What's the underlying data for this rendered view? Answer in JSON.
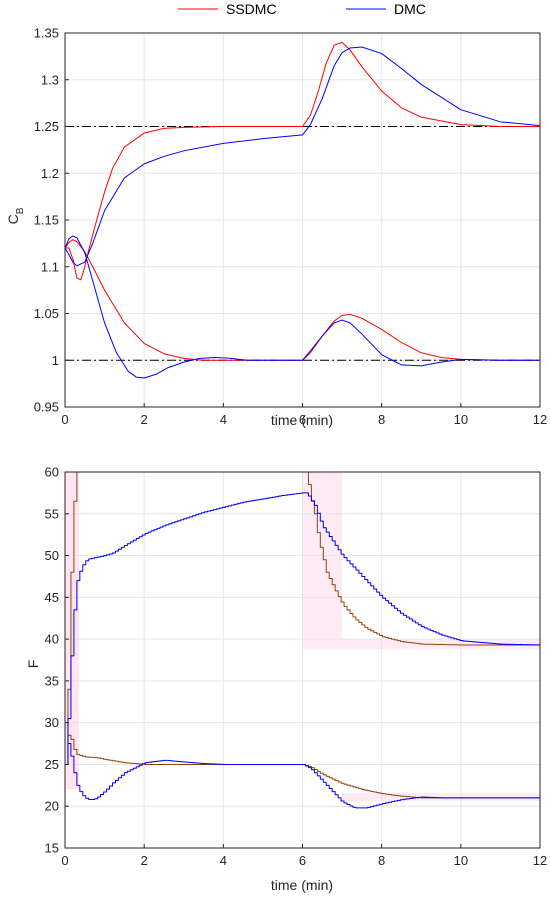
{
  "legend": {
    "entries": [
      {
        "label": "SSDMC",
        "color": "#ff0000"
      },
      {
        "label": "DMC",
        "color": "#0000ff"
      }
    ],
    "placement": "top-center"
  },
  "colors": {
    "reference": "#000000",
    "grid": "#e6e6e6",
    "axes": "#262626",
    "setpoint_band": "#ff99cc",
    "ssdmc_input": "#8b4513"
  },
  "chart_data": [
    {
      "type": "line",
      "title": "",
      "xlabel": "time (min)",
      "ylabel": "C",
      "ylabel_subscript": "B",
      "xlim": [
        0,
        12
      ],
      "ylim": [
        0.95,
        1.35
      ],
      "grid": true,
      "xticks": [
        0,
        2,
        4,
        6,
        8,
        10,
        12
      ],
      "yticks": [
        0.95,
        1,
        1.05,
        1.1,
        1.15,
        1.2,
        1.25,
        1.3,
        1.35
      ],
      "ytick_labels": [
        "0.95",
        "1",
        "1.05",
        "1.1",
        "1.15",
        "1.2",
        "1.25",
        "1.3",
        "1.35"
      ],
      "reference_lines": [
        1.25,
        1.0
      ],
      "series": [
        {
          "name": "SSDMC",
          "color": "#ff0000",
          "x": [
            0,
            0.1,
            0.2,
            0.3,
            0.4,
            0.5,
            0.6,
            0.8,
            1,
            1.2,
            1.5,
            2,
            2.5,
            3,
            4,
            5,
            6,
            6.2,
            6.4,
            6.6,
            6.8,
            7,
            7.2,
            7.5,
            8,
            8.5,
            9,
            10,
            11,
            12
          ],
          "y": [
            1.12,
            1.12,
            1.108,
            1.088,
            1.086,
            1.1,
            1.118,
            1.15,
            1.18,
            1.205,
            1.228,
            1.243,
            1.248,
            1.249,
            1.25,
            1.25,
            1.25,
            1.262,
            1.288,
            1.318,
            1.337,
            1.34,
            1.332,
            1.314,
            1.288,
            1.27,
            1.26,
            1.252,
            1.25,
            1.25
          ]
        },
        {
          "name": "",
          "color": "#ff0000",
          "x": [
            0,
            0.1,
            0.2,
            0.3,
            0.5,
            0.7,
            1,
            1.5,
            2,
            2.5,
            3,
            3.5,
            4,
            5,
            6,
            6.2,
            6.5,
            6.8,
            7,
            7.2,
            7.5,
            8,
            8.5,
            9,
            9.5,
            10,
            11,
            12
          ],
          "y": [
            1.12,
            1.126,
            1.129,
            1.127,
            1.116,
            1.1,
            1.075,
            1.04,
            1.018,
            1.007,
            1.002,
            1.0,
            1.0,
            1.0,
            1.0,
            1.008,
            1.026,
            1.042,
            1.048,
            1.049,
            1.045,
            1.033,
            1.019,
            1.008,
            1.003,
            1.001,
            1.0,
            1.0
          ]
        },
        {
          "name": "DMC",
          "color": "#0000ff",
          "x": [
            0,
            0.1,
            0.2,
            0.3,
            0.5,
            0.7,
            1,
            1.5,
            2,
            2.5,
            3,
            4,
            5,
            6,
            6.2,
            6.5,
            6.8,
            7,
            7.2,
            7.5,
            8,
            8.5,
            9,
            10,
            11,
            12
          ],
          "y": [
            1.12,
            1.113,
            1.105,
            1.101,
            1.105,
            1.125,
            1.16,
            1.195,
            1.21,
            1.218,
            1.224,
            1.232,
            1.237,
            1.241,
            1.252,
            1.28,
            1.315,
            1.329,
            1.334,
            1.335,
            1.328,
            1.312,
            1.295,
            1.268,
            1.255,
            1.251
          ]
        },
        {
          "name": "",
          "color": "#0000ff",
          "x": [
            0,
            0.1,
            0.2,
            0.3,
            0.5,
            0.7,
            1,
            1.3,
            1.6,
            1.8,
            2,
            2.3,
            2.6,
            3,
            3.4,
            3.8,
            4.2,
            4.6,
            5,
            6,
            6.2,
            6.5,
            6.8,
            7,
            7.2,
            7.5,
            8,
            8.5,
            9,
            9.5,
            10,
            11,
            12
          ],
          "y": [
            1.12,
            1.13,
            1.133,
            1.131,
            1.115,
            1.085,
            1.04,
            1.008,
            0.988,
            0.982,
            0.981,
            0.985,
            0.992,
            0.998,
            1.002,
            1.003,
            1.002,
            1.0,
            1.0,
            1.0,
            1.01,
            1.026,
            1.04,
            1.043,
            1.04,
            1.028,
            1.006,
            0.995,
            0.994,
            0.998,
            1.001,
            1.0,
            1.0
          ]
        }
      ]
    },
    {
      "type": "line",
      "title": "",
      "xlabel": "time (min)",
      "ylabel": "F",
      "xlim": [
        0,
        12
      ],
      "ylim": [
        15,
        60
      ],
      "grid": true,
      "xticks": [
        0,
        2,
        4,
        6,
        8,
        10,
        12
      ],
      "yticks": [
        15,
        20,
        25,
        30,
        35,
        40,
        45,
        50,
        55,
        60
      ],
      "ytick_labels": [
        "15",
        "20",
        "25",
        "30",
        "35",
        "40",
        "45",
        "50",
        "55",
        "60"
      ],
      "series": [
        {
          "name": "SSDMC",
          "color": "#8b4513",
          "x": [
            0,
            0.05,
            0.1,
            0.15,
            0.2,
            0.25,
            0.3,
            0.35,
            0.4,
            6,
            6.1,
            6.2,
            6.3,
            6.4,
            6.5,
            6.6,
            6.8,
            7,
            7.3,
            7.6,
            8,
            8.5,
            9,
            10,
            11,
            12
          ],
          "y": [
            25,
            30,
            38,
            48,
            55,
            58,
            60,
            60,
            60,
            60,
            60,
            57,
            55,
            52,
            50,
            48,
            46,
            44.2,
            42.5,
            41.3,
            40.3,
            39.7,
            39.4,
            39.3,
            39.3,
            39.3
          ]
        },
        {
          "name": "",
          "color": "#8b4513",
          "x": [
            0,
            0.05,
            0.1,
            0.15,
            0.2,
            0.3,
            0.5,
            0.8,
            1,
            1.5,
            2,
            3,
            4,
            5,
            6,
            6.2,
            6.5,
            7,
            7.5,
            8,
            8.5,
            9,
            10,
            11,
            12
          ],
          "y": [
            25,
            28,
            29,
            28,
            27,
            26.2,
            25.9,
            25.8,
            25.6,
            25.2,
            25,
            25,
            25,
            25,
            25,
            24.7,
            23.8,
            22.7,
            22,
            21.5,
            21.2,
            21,
            21,
            21,
            21
          ]
        },
        {
          "name": "DMC",
          "color": "#0000ff",
          "x": [
            0,
            0.05,
            0.1,
            0.15,
            0.2,
            0.25,
            0.3,
            0.4,
            0.5,
            0.6,
            0.8,
            1,
            1.2,
            1.5,
            2,
            2.5,
            3,
            3.5,
            4,
            4.5,
            5,
            5.5,
            6,
            6.1,
            6.3,
            6.5,
            7,
            7.5,
            8,
            8.5,
            9,
            9.5,
            10,
            11,
            12
          ],
          "y": [
            25,
            28,
            33,
            38,
            42,
            45,
            47,
            48.5,
            49.3,
            49.6,
            49.8,
            50,
            50.3,
            51.2,
            52.6,
            53.6,
            54.4,
            55.2,
            55.8,
            56.4,
            56.8,
            57.2,
            57.5,
            57.5,
            56,
            53.5,
            50,
            47.5,
            45,
            43,
            41.5,
            40.5,
            39.8,
            39.4,
            39.3
          ]
        },
        {
          "name": "",
          "color": "#0000ff",
          "x": [
            0,
            0.05,
            0.1,
            0.15,
            0.2,
            0.3,
            0.4,
            0.5,
            0.6,
            0.7,
            0.8,
            1,
            1.2,
            1.5,
            2,
            2.5,
            3,
            3.5,
            4,
            5,
            6,
            6.2,
            6.5,
            6.8,
            7,
            7.3,
            7.6,
            8,
            8.5,
            9,
            9.5,
            10,
            11,
            12
          ],
          "y": [
            25,
            28,
            27,
            26,
            24.5,
            22.5,
            21.5,
            21,
            20.8,
            20.8,
            21,
            21.8,
            22.8,
            24,
            25.2,
            25.5,
            25.3,
            25.1,
            25,
            25,
            25,
            24.5,
            23,
            21.5,
            20.5,
            19.8,
            19.8,
            20.3,
            20.8,
            21.1,
            21,
            21,
            21,
            21
          ]
        }
      ]
    }
  ]
}
